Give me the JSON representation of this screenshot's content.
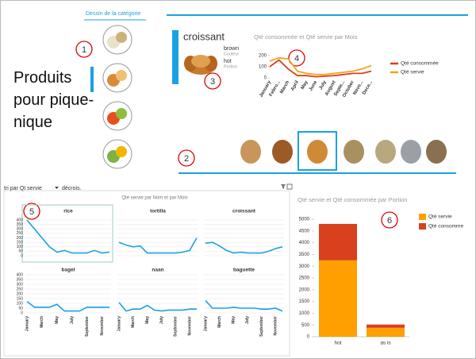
{
  "category_picker": {
    "title": "Dessin de la catégorie"
  },
  "heading": "Produits pour pique-nique",
  "callouts": [
    "1",
    "2",
    "3",
    "4",
    "5",
    "6"
  ],
  "card": {
    "name": "croissant",
    "fields": [
      {
        "value": "brown",
        "label": "Couleur"
      },
      {
        "value": "hot",
        "label": "Portion"
      }
    ]
  },
  "sort": {
    "label": "tri par Qt servie",
    "order": "décrois."
  },
  "chart_data": [
    {
      "type": "line",
      "title": "Qté consommée et Qté servie par Mois",
      "categories": [
        "January",
        "Febru...",
        "March",
        "April",
        "May",
        "June",
        "July",
        "August",
        "Septe...",
        "October",
        "Nove...",
        "Dece..."
      ],
      "series": [
        {
          "name": "Qté consommée",
          "color": "#d9401e",
          "values": [
            100,
            160,
            80,
            20,
            20,
            10,
            15,
            20,
            30,
            40,
            40,
            60
          ]
        },
        {
          "name": "Qté servie",
          "color": "#f7a21b",
          "values": [
            150,
            180,
            170,
            60,
            40,
            30,
            30,
            40,
            50,
            60,
            80,
            110
          ]
        }
      ],
      "ylim": [
        0,
        250
      ],
      "yticks": [
        0,
        100,
        200
      ],
      "legend": "right"
    },
    {
      "type": "small-multiples",
      "title": "Qté servie par Nom et par Mois",
      "categories": [
        "January",
        null,
        "March",
        null,
        "May",
        null,
        "July",
        null,
        "September",
        null,
        "November",
        null
      ],
      "color": "#1ba1e2",
      "ylim": [
        0,
        400
      ],
      "yticks": [
        0,
        50,
        100,
        150,
        200,
        250,
        300,
        350,
        400
      ],
      "panels": [
        {
          "name": "rice",
          "values": [
            400,
            300,
            200,
            100,
            40,
            60,
            30,
            30,
            30,
            60,
            30,
            40
          ]
        },
        {
          "name": "tortilla",
          "values": [
            150,
            120,
            100,
            110,
            30,
            30,
            30,
            30,
            30,
            40,
            60,
            200
          ]
        },
        {
          "name": "croissant",
          "values": [
            140,
            150,
            110,
            60,
            30,
            40,
            30,
            30,
            30,
            50,
            80,
            100
          ]
        },
        {
          "name": "bagel",
          "values": [
            120,
            60,
            60,
            60,
            90,
            20,
            20,
            20,
            60,
            60,
            60,
            60
          ]
        },
        {
          "name": "naan",
          "values": [
            110,
            20,
            40,
            40,
            80,
            30,
            20,
            30,
            30,
            30,
            40,
            40
          ]
        },
        {
          "name": "baguette",
          "values": [
            130,
            50,
            50,
            50,
            60,
            50,
            50,
            50,
            40,
            40,
            50,
            20
          ]
        }
      ]
    },
    {
      "type": "stacked-bar",
      "title": "Qté servie et Qté consommée par Portion",
      "categories": [
        "hot",
        "as is"
      ],
      "series": [
        {
          "name": "Qté servie",
          "color": "#ff9f00",
          "values": [
            3250,
            380
          ]
        },
        {
          "name": "Qté consomme",
          "color": "#d9401e",
          "values": [
            1550,
            140
          ]
        }
      ],
      "ylim": [
        0,
        5000
      ],
      "yticks": [
        0,
        500,
        1000,
        1500,
        2000,
        2500,
        3000,
        3500,
        4000,
        4500,
        5000
      ],
      "legend": "right"
    }
  ]
}
